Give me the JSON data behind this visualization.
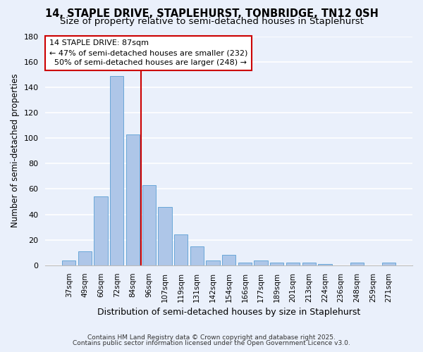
{
  "title1": "14, STAPLE DRIVE, STAPLEHURST, TONBRIDGE, TN12 0SH",
  "title2": "Size of property relative to semi-detached houses in Staplehurst",
  "xlabel": "Distribution of semi-detached houses by size in Staplehurst",
  "ylabel": "Number of semi-detached properties",
  "categories": [
    "37sqm",
    "49sqm",
    "60sqm",
    "72sqm",
    "84sqm",
    "96sqm",
    "107sqm",
    "119sqm",
    "131sqm",
    "142sqm",
    "154sqm",
    "166sqm",
    "177sqm",
    "189sqm",
    "201sqm",
    "213sqm",
    "224sqm",
    "236sqm",
    "248sqm",
    "259sqm",
    "271sqm"
  ],
  "values": [
    4,
    11,
    54,
    149,
    103,
    63,
    46,
    24,
    15,
    4,
    8,
    2,
    4,
    2,
    2,
    2,
    1,
    0,
    2,
    0,
    2
  ],
  "bar_color": "#aec6e8",
  "bar_edge_color": "#5a9fd4",
  "bg_color": "#eaf0fb",
  "grid_color": "#ffffff",
  "vline_x": 4.5,
  "vline_color": "#cc0000",
  "annotation_line1": "14 STAPLE DRIVE: 87sqm",
  "annotation_line2": "← 47% of semi-detached houses are smaller (232)",
  "annotation_line3": "  50% of semi-detached houses are larger (248) →",
  "annotation_box_color": "#ffffff",
  "annotation_box_edge": "#cc0000",
  "footnote1": "Contains HM Land Registry data © Crown copyright and database right 2025.",
  "footnote2": "Contains public sector information licensed under the Open Government Licence v3.0.",
  "ylim": [
    0,
    180
  ],
  "title_fontsize": 10.5,
  "subtitle_fontsize": 9.5
}
